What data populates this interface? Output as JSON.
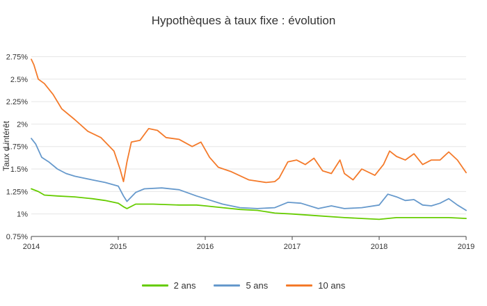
{
  "chart_data": {
    "type": "line",
    "title": "Hypothèques à taux fixe : évolution",
    "xlabel": "",
    "ylabel": "Taux d intérêt",
    "x_ticks": [
      "2014",
      "2015",
      "2016",
      "2017",
      "2018",
      "2019"
    ],
    "y_ticks": [
      "0.75%",
      "1%",
      "1.25%",
      "1.5%",
      "1.75%",
      "2%",
      "2.25%",
      "2.5%",
      "2.75%"
    ],
    "xlim": [
      2014,
      2019
    ],
    "ylim": [
      0.75,
      2.8
    ],
    "grid": "horizontal",
    "legend_position": "bottom",
    "series": [
      {
        "name": "2 ans",
        "color": "#66cc00",
        "x": [
          2014.0,
          2014.08,
          2014.15,
          2014.3,
          2014.5,
          2014.7,
          2014.85,
          2015.0,
          2015.06,
          2015.1,
          2015.2,
          2015.4,
          2015.7,
          2015.9,
          2016.0,
          2016.2,
          2016.4,
          2016.6,
          2016.8,
          2017.0,
          2017.3,
          2017.6,
          2017.8,
          2018.0,
          2018.2,
          2018.5,
          2018.8,
          2019.0
        ],
        "values": [
          1.28,
          1.25,
          1.21,
          1.2,
          1.19,
          1.17,
          1.15,
          1.12,
          1.08,
          1.06,
          1.11,
          1.11,
          1.1,
          1.1,
          1.09,
          1.07,
          1.05,
          1.04,
          1.01,
          1.0,
          0.98,
          0.96,
          0.95,
          0.94,
          0.96,
          0.96,
          0.96,
          0.95
        ]
      },
      {
        "name": "5 ans",
        "color": "#6699cc",
        "x": [
          2014.0,
          2014.05,
          2014.12,
          2014.2,
          2014.3,
          2014.4,
          2014.5,
          2014.7,
          2014.85,
          2015.0,
          2015.06,
          2015.1,
          2015.2,
          2015.3,
          2015.5,
          2015.7,
          2015.9,
          2016.0,
          2016.2,
          2016.4,
          2016.6,
          2016.8,
          2016.95,
          2017.1,
          2017.3,
          2017.45,
          2017.6,
          2017.8,
          2018.0,
          2018.1,
          2018.2,
          2018.3,
          2018.4,
          2018.5,
          2018.6,
          2018.7,
          2018.8,
          2018.9,
          2019.0
        ],
        "values": [
          1.84,
          1.78,
          1.63,
          1.58,
          1.5,
          1.45,
          1.42,
          1.38,
          1.35,
          1.31,
          1.2,
          1.14,
          1.24,
          1.28,
          1.29,
          1.27,
          1.2,
          1.17,
          1.11,
          1.07,
          1.06,
          1.07,
          1.13,
          1.12,
          1.06,
          1.09,
          1.06,
          1.07,
          1.1,
          1.22,
          1.19,
          1.15,
          1.16,
          1.1,
          1.09,
          1.12,
          1.17,
          1.1,
          1.04
        ]
      },
      {
        "name": "10 ans",
        "color": "#f47a2a",
        "x": [
          2014.0,
          2014.03,
          2014.08,
          2014.15,
          2014.25,
          2014.35,
          2014.5,
          2014.65,
          2014.8,
          2014.95,
          2015.02,
          2015.06,
          2015.1,
          2015.15,
          2015.25,
          2015.35,
          2015.45,
          2015.55,
          2015.7,
          2015.85,
          2015.95,
          2016.05,
          2016.15,
          2016.3,
          2016.5,
          2016.7,
          2016.8,
          2016.85,
          2016.95,
          2017.05,
          2017.15,
          2017.25,
          2017.35,
          2017.45,
          2017.55,
          2017.6,
          2017.7,
          2017.8,
          2017.95,
          2018.05,
          2018.12,
          2018.2,
          2018.3,
          2018.4,
          2018.5,
          2018.6,
          2018.7,
          2018.8,
          2018.9,
          2019.0
        ],
        "values": [
          2.72,
          2.66,
          2.5,
          2.45,
          2.33,
          2.17,
          2.05,
          1.92,
          1.85,
          1.7,
          1.5,
          1.36,
          1.58,
          1.8,
          1.82,
          1.95,
          1.93,
          1.85,
          1.83,
          1.75,
          1.8,
          1.63,
          1.52,
          1.47,
          1.38,
          1.35,
          1.36,
          1.4,
          1.58,
          1.6,
          1.55,
          1.62,
          1.48,
          1.45,
          1.6,
          1.45,
          1.38,
          1.5,
          1.43,
          1.55,
          1.7,
          1.64,
          1.6,
          1.67,
          1.55,
          1.6,
          1.6,
          1.69,
          1.6,
          1.46
        ]
      }
    ]
  }
}
